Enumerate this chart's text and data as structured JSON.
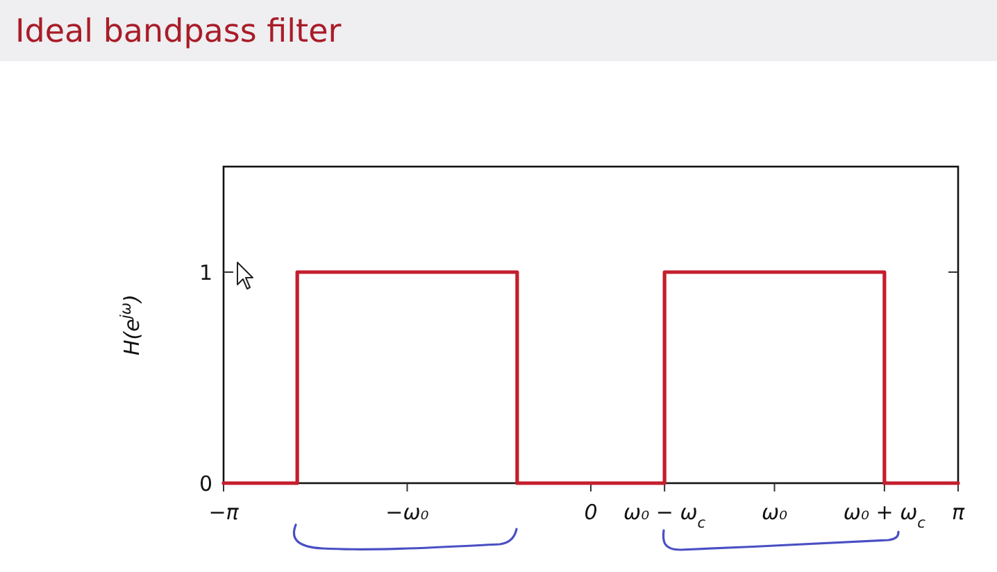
{
  "chart_data": {
    "type": "line",
    "title": "Ideal bandpass filter",
    "ylabel": "H(e$^{jω}$)",
    "x": [
      -3.14,
      -2.51,
      -2.51,
      -0.63,
      -0.63,
      0.63,
      0.63,
      2.51,
      2.51,
      3.14
    ],
    "values": [
      0,
      0,
      1,
      1,
      0,
      0,
      1,
      1,
      0,
      0
    ],
    "color": "#c41e2c",
    "xlim": [
      -3.14,
      3.14
    ],
    "xticks": [
      {
        "value": -3.14,
        "label": "−π"
      },
      {
        "value": -1.57,
        "label": "−ω₀"
      },
      0,
      {
        "value": 0.63,
        "label": "ω₀ − ω$_{c}$"
      },
      {
        "value": 1.57,
        "label": "ω₀"
      },
      {
        "value": 2.51,
        "label": "ω₀ + ω$_{c}$"
      },
      {
        "value": 3.14,
        "label": "π"
      }
    ],
    "ylim": [
      0,
      1.5
    ],
    "yticks": [
      0,
      1
    ]
  }
}
